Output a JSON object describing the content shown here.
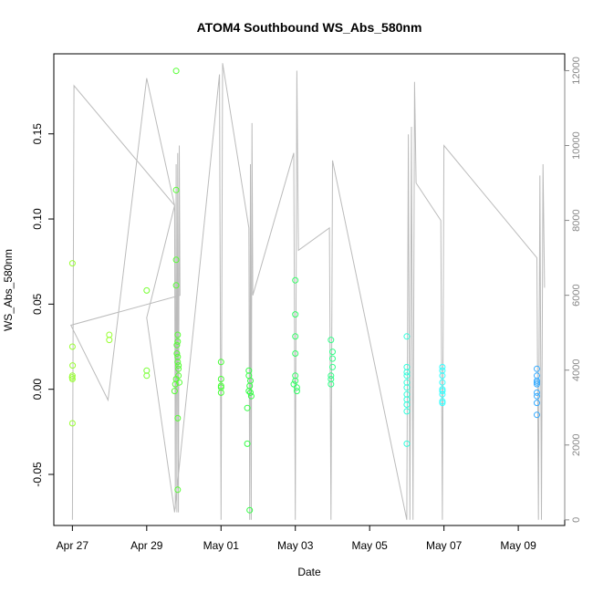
{
  "chart_data": {
    "type": "scatter",
    "title": "ATOM4 Southbound WS_Abs_580nm",
    "xlabel": "Date",
    "ylabel": "WS_Abs_580nm",
    "xlim": [
      "2022-04-26 12:00",
      "2022-05-10 06:00"
    ],
    "ylim": [
      -0.08,
      0.197
    ],
    "y2lim": [
      -150,
      12450
    ],
    "x_ticks": [
      {
        "label": "Apr 27",
        "x": "2022-04-27"
      },
      {
        "label": "Apr 29",
        "x": "2022-04-29"
      },
      {
        "label": "May 01",
        "x": "2022-05-01"
      },
      {
        "label": "May 03",
        "x": "2022-05-03"
      },
      {
        "label": "May 05",
        "x": "2022-05-05"
      },
      {
        "label": "May 07",
        "x": "2022-05-07"
      },
      {
        "label": "May 09",
        "x": "2022-05-09"
      }
    ],
    "y_ticks": [
      -0.05,
      0.0,
      0.05,
      0.1,
      0.15
    ],
    "y2_ticks": [
      0,
      2000,
      4000,
      6000,
      8000,
      10000,
      12000
    ],
    "grid": false,
    "legend": "none",
    "points": [
      {
        "x": "2022-04-27 00:00",
        "y": 0.074,
        "color": "#99ff33"
      },
      {
        "x": "2022-04-27 00:00",
        "y": 0.025,
        "color": "#99ff33"
      },
      {
        "x": "2022-04-27 00:10",
        "y": 0.014,
        "color": "#99ff33"
      },
      {
        "x": "2022-04-27 00:00",
        "y": 0.008,
        "color": "#99ff33"
      },
      {
        "x": "2022-04-26 23:50",
        "y": 0.007,
        "color": "#99ff33"
      },
      {
        "x": "2022-04-27 00:00",
        "y": 0.006,
        "color": "#99ff33"
      },
      {
        "x": "2022-04-27 00:00",
        "y": -0.02,
        "color": "#99ff33"
      },
      {
        "x": "2022-04-27 23:50",
        "y": 0.032,
        "color": "#99ff33"
      },
      {
        "x": "2022-04-27 23:50",
        "y": 0.029,
        "color": "#99ff33"
      },
      {
        "x": "2022-04-29 00:00",
        "y": 0.058,
        "color": "#77ff33"
      },
      {
        "x": "2022-04-29 00:00",
        "y": 0.011,
        "color": "#77ff33"
      },
      {
        "x": "2022-04-29 00:00",
        "y": 0.008,
        "color": "#77ff33"
      },
      {
        "x": "2022-04-29 19:00",
        "y": 0.187,
        "color": "#55ff33"
      },
      {
        "x": "2022-04-29 19:00",
        "y": 0.117,
        "color": "#55ff33"
      },
      {
        "x": "2022-04-29 19:00",
        "y": 0.076,
        "color": "#55ff33"
      },
      {
        "x": "2022-04-29 19:00",
        "y": 0.061,
        "color": "#55ff33"
      },
      {
        "x": "2022-04-29 20:00",
        "y": 0.032,
        "color": "#55ff33"
      },
      {
        "x": "2022-04-29 20:00",
        "y": 0.028,
        "color": "#55ff33"
      },
      {
        "x": "2022-04-29 19:30",
        "y": 0.026,
        "color": "#55ff33"
      },
      {
        "x": "2022-04-29 19:30",
        "y": 0.021,
        "color": "#55ff33"
      },
      {
        "x": "2022-04-29 20:00",
        "y": 0.019,
        "color": "#55ff33"
      },
      {
        "x": "2022-04-29 20:00",
        "y": 0.016,
        "color": "#55ff33"
      },
      {
        "x": "2022-04-29 20:30",
        "y": 0.014,
        "color": "#55ff33"
      },
      {
        "x": "2022-04-29 20:30",
        "y": 0.012,
        "color": "#55ff33"
      },
      {
        "x": "2022-04-29 20:30",
        "y": 0.008,
        "color": "#55ff33"
      },
      {
        "x": "2022-04-29 19:00",
        "y": 0.006,
        "color": "#55ff33"
      },
      {
        "x": "2022-04-29 21:00",
        "y": 0.004,
        "color": "#55ff33"
      },
      {
        "x": "2022-04-29 18:30",
        "y": 0.003,
        "color": "#55ff33"
      },
      {
        "x": "2022-04-29 18:00",
        "y": -0.001,
        "color": "#55ff33"
      },
      {
        "x": "2022-04-29 20:00",
        "y": -0.017,
        "color": "#55ff33"
      },
      {
        "x": "2022-04-29 20:00",
        "y": -0.059,
        "color": "#55ff33"
      },
      {
        "x": "2022-05-01 00:00",
        "y": 0.016,
        "color": "#44ff33"
      },
      {
        "x": "2022-05-01 00:00",
        "y": 0.006,
        "color": "#44ff33"
      },
      {
        "x": "2022-05-01 00:00",
        "y": 0.002,
        "color": "#44ff33"
      },
      {
        "x": "2022-05-01 00:00",
        "y": 0.001,
        "color": "#44ff33"
      },
      {
        "x": "2022-05-01 00:00",
        "y": -0.002,
        "color": "#44ff33"
      },
      {
        "x": "2022-05-01 18:00",
        "y": 0.011,
        "color": "#33ff44"
      },
      {
        "x": "2022-05-01 18:00",
        "y": 0.008,
        "color": "#33ff44"
      },
      {
        "x": "2022-05-01 19:00",
        "y": 0.005,
        "color": "#33ff44"
      },
      {
        "x": "2022-05-01 18:30",
        "y": 0.002,
        "color": "#33ff44"
      },
      {
        "x": "2022-05-01 18:00",
        "y": -0.001,
        "color": "#33ff44"
      },
      {
        "x": "2022-05-01 19:00",
        "y": -0.002,
        "color": "#33ff44"
      },
      {
        "x": "2022-05-01 19:30",
        "y": -0.004,
        "color": "#33ff44"
      },
      {
        "x": "2022-05-01 17:00",
        "y": -0.011,
        "color": "#33ff44"
      },
      {
        "x": "2022-05-01 17:00",
        "y": -0.032,
        "color": "#33ff44"
      },
      {
        "x": "2022-05-01 18:30",
        "y": -0.071,
        "color": "#33ff44"
      },
      {
        "x": "2022-05-03 00:00",
        "y": 0.064,
        "color": "#33ff66"
      },
      {
        "x": "2022-05-03 00:00",
        "y": 0.044,
        "color": "#33ff66"
      },
      {
        "x": "2022-05-03 00:00",
        "y": 0.031,
        "color": "#33ff66"
      },
      {
        "x": "2022-05-03 00:00",
        "y": 0.021,
        "color": "#33ff66"
      },
      {
        "x": "2022-05-03 00:00",
        "y": 0.008,
        "color": "#33ff66"
      },
      {
        "x": "2022-05-03 00:00",
        "y": 0.005,
        "color": "#33ff66"
      },
      {
        "x": "2022-05-02 23:00",
        "y": 0.003,
        "color": "#33ff66"
      },
      {
        "x": "2022-05-03 01:00",
        "y": 0.001,
        "color": "#33ff66"
      },
      {
        "x": "2022-05-03 01:00",
        "y": -0.001,
        "color": "#33ff66"
      },
      {
        "x": "2022-05-03 23:00",
        "y": 0.029,
        "color": "#33ff88"
      },
      {
        "x": "2022-05-04 00:00",
        "y": 0.022,
        "color": "#33ff88"
      },
      {
        "x": "2022-05-04 00:00",
        "y": 0.018,
        "color": "#33ff88"
      },
      {
        "x": "2022-05-04 00:00",
        "y": 0.013,
        "color": "#33ff88"
      },
      {
        "x": "2022-05-03 23:00",
        "y": 0.008,
        "color": "#33ff88"
      },
      {
        "x": "2022-05-03 23:00",
        "y": 0.006,
        "color": "#33ff88"
      },
      {
        "x": "2022-05-03 23:00",
        "y": 0.003,
        "color": "#33ff88"
      },
      {
        "x": "2022-05-06 00:00",
        "y": 0.031,
        "color": "#33ffdd"
      },
      {
        "x": "2022-05-06 00:00",
        "y": 0.013,
        "color": "#33ffdd"
      },
      {
        "x": "2022-05-06 00:00",
        "y": 0.01,
        "color": "#33ffdd"
      },
      {
        "x": "2022-05-06 00:00",
        "y": 0.008,
        "color": "#33ffdd"
      },
      {
        "x": "2022-05-06 00:00",
        "y": 0.004,
        "color": "#33ffdd"
      },
      {
        "x": "2022-05-06 00:00",
        "y": 0.001,
        "color": "#33ffdd"
      },
      {
        "x": "2022-05-06 00:00",
        "y": -0.003,
        "color": "#33ffdd"
      },
      {
        "x": "2022-05-06 00:00",
        "y": -0.006,
        "color": "#33ffdd"
      },
      {
        "x": "2022-05-06 00:00",
        "y": -0.009,
        "color": "#33ffdd"
      },
      {
        "x": "2022-05-06 00:00",
        "y": -0.013,
        "color": "#33ffdd"
      },
      {
        "x": "2022-05-06 00:00",
        "y": -0.032,
        "color": "#33ffdd"
      },
      {
        "x": "2022-05-06 23:00",
        "y": 0.013,
        "color": "#33ffff"
      },
      {
        "x": "2022-05-06 23:00",
        "y": 0.011,
        "color": "#33ffff"
      },
      {
        "x": "2022-05-06 23:00",
        "y": 0.008,
        "color": "#33ffff"
      },
      {
        "x": "2022-05-06 23:00",
        "y": 0.004,
        "color": "#33ffff"
      },
      {
        "x": "2022-05-06 23:00",
        "y": 0.0,
        "color": "#33ffff"
      },
      {
        "x": "2022-05-06 23:00",
        "y": -0.001,
        "color": "#33ffff"
      },
      {
        "x": "2022-05-06 23:00",
        "y": -0.003,
        "color": "#33ffff"
      },
      {
        "x": "2022-05-06 23:00",
        "y": -0.007,
        "color": "#33ffff"
      },
      {
        "x": "2022-05-06 23:00",
        "y": -0.008,
        "color": "#33ffff"
      },
      {
        "x": "2022-05-09 12:00",
        "y": 0.012,
        "color": "#33aaff"
      },
      {
        "x": "2022-05-09 12:00",
        "y": 0.008,
        "color": "#33aaff"
      },
      {
        "x": "2022-05-09 12:00",
        "y": 0.005,
        "color": "#33aaff"
      },
      {
        "x": "2022-05-09 12:00",
        "y": 0.004,
        "color": "#33aaff"
      },
      {
        "x": "2022-05-09 12:00",
        "y": 0.003,
        "color": "#33aaff"
      },
      {
        "x": "2022-05-09 12:00",
        "y": -0.002,
        "color": "#33aaff"
      },
      {
        "x": "2022-05-09 12:00",
        "y": -0.004,
        "color": "#33aaff"
      },
      {
        "x": "2022-05-09 12:00",
        "y": -0.008,
        "color": "#33aaff"
      },
      {
        "x": "2022-05-09 12:00",
        "y": -0.015,
        "color": "#33aaff"
      }
    ],
    "secondary_series": {
      "axis": "right",
      "color": "#bbbbbb",
      "values": [
        [
          "2022-04-27 00:00",
          0
        ],
        [
          "2022-04-27 01:00",
          11600
        ],
        [
          "2022-04-29 18:00",
          8400
        ],
        [
          "2022-04-29 18:30",
          300
        ],
        [
          "2022-04-29 19:00",
          9500
        ],
        [
          "2022-04-29 19:30",
          200
        ],
        [
          "2022-04-29 20:00",
          9800
        ],
        [
          "2022-04-29 20:30",
          200
        ],
        [
          "2022-04-29 21:00",
          10000
        ],
        [
          "2022-04-29 21:30",
          6000
        ],
        [
          "2022-04-26 23:00",
          5200
        ],
        [
          "2022-04-27 23:00",
          3200
        ],
        [
          "2022-04-29 00:00",
          11800
        ],
        [
          "2022-04-29 18:00",
          8400
        ],
        [
          "2022-04-29 00:00",
          5400
        ],
        [
          "2022-04-29 18:00",
          200
        ],
        [
          "2022-04-30 23:00",
          11900
        ],
        [
          "2022-05-01 00:00",
          0
        ],
        [
          "2022-05-01 01:00",
          12200
        ],
        [
          "2022-05-01 18:00",
          7800
        ],
        [
          "2022-05-01 18:30",
          0
        ],
        [
          "2022-05-01 19:00",
          9500
        ],
        [
          "2022-05-01 19:30",
          0
        ],
        [
          "2022-05-01 20:00",
          10600
        ],
        [
          "2022-05-01 20:30",
          6000
        ],
        [
          "2022-05-02 23:00",
          9800
        ],
        [
          "2022-05-03 00:00",
          0
        ],
        [
          "2022-05-03 01:00",
          12000
        ],
        [
          "2022-05-03 02:00",
          7200
        ],
        [
          "2022-05-03 22:00",
          7800
        ],
        [
          "2022-05-03 23:00",
          0
        ],
        [
          "2022-05-04 00:00",
          9600
        ],
        [
          "2022-05-06 00:00",
          0
        ],
        [
          "2022-05-06 01:00",
          10300
        ],
        [
          "2022-05-06 02:00",
          0
        ],
        [
          "2022-05-06 03:00",
          10500
        ],
        [
          "2022-05-06 04:00",
          0
        ],
        [
          "2022-05-06 05:00",
          11700
        ],
        [
          "2022-05-06 06:00",
          9000
        ],
        [
          "2022-05-06 22:00",
          8000
        ],
        [
          "2022-05-06 23:00",
          0
        ],
        [
          "2022-05-07 00:00",
          10000
        ],
        [
          "2022-05-09 12:00",
          7000
        ],
        [
          "2022-05-09 13:00",
          0
        ],
        [
          "2022-05-09 14:00",
          9200
        ],
        [
          "2022-05-09 15:00",
          0
        ],
        [
          "2022-05-09 16:00",
          9500
        ],
        [
          "2022-05-09 17:00",
          6200
        ]
      ]
    }
  }
}
